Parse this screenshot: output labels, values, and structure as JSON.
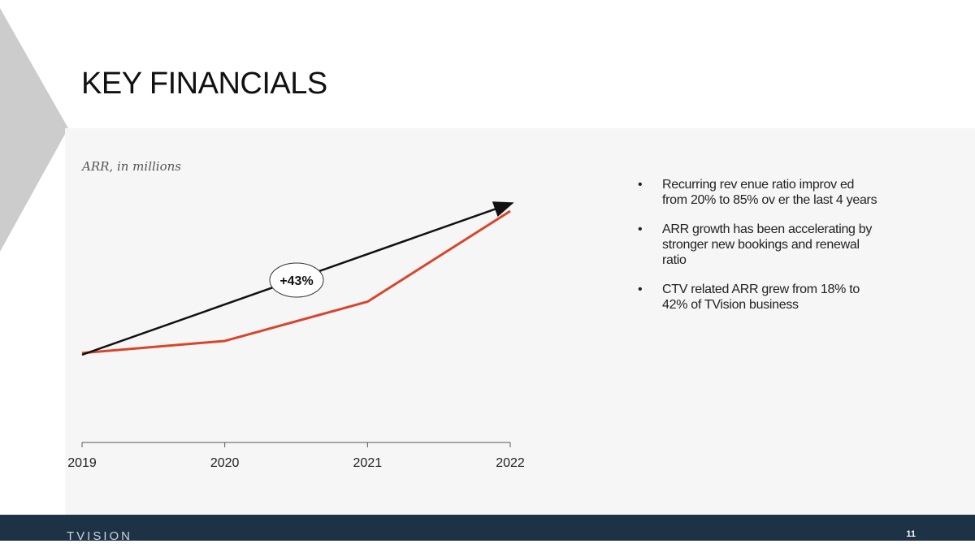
{
  "slide": {
    "title": "KEY FINANCIALS",
    "page_number": "11",
    "brand": "TVISION"
  },
  "chart_data": {
    "type": "line",
    "title": "ARR, in millions",
    "x": [
      "2019",
      "2020",
      "2021",
      "2022"
    ],
    "series": [
      {
        "name": "",
        "values": [
          0.06,
          0.14,
          0.4,
          1.0
        ],
        "color": "#d8452b"
      }
    ],
    "trend_arrow": {
      "from": "2019",
      "to": "2022",
      "color": "#111111"
    },
    "annotation": "+43%",
    "y_axis_shown": false,
    "grid": false
  },
  "bullets": [
    "Recurring rev enue ratio improv ed from 20% to 85% ov er the last 4 years",
    "ARR growth has been accelerating by stronger new bookings and renewal ratio",
    "CTV related ARR grew from 18% to 42% of TVision business"
  ],
  "colors": {
    "accent_line": "#d8452b",
    "footer_bg": "#1e3246",
    "panel_bg": "#f6f6f6",
    "chevron": "#cccccc"
  }
}
